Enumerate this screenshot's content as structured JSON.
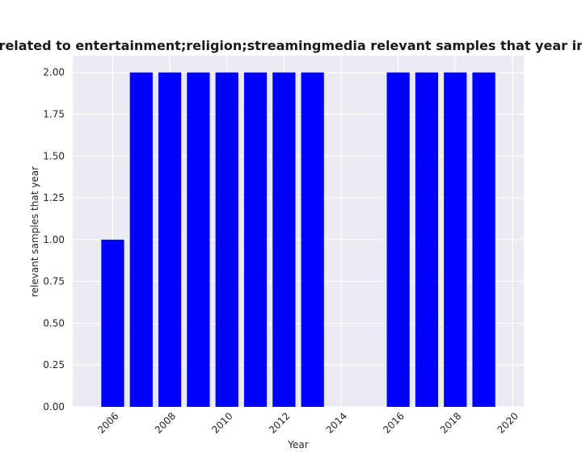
{
  "chart_data": {
    "type": "bar",
    "title": "ies are related to entertainment;religion;streamingmedia relevant samples that year in privacy",
    "xlabel": "Year",
    "ylabel": "relevant samples that year",
    "x": [
      2006,
      2007,
      2008,
      2009,
      2010,
      2011,
      2012,
      2013,
      2016,
      2017,
      2018,
      2019
    ],
    "values": [
      1,
      2,
      2,
      2,
      2,
      2,
      2,
      2,
      2,
      2,
      2,
      2
    ],
    "xlim": [
      2004.6,
      2020.4
    ],
    "ylim": [
      0,
      2.1
    ],
    "xticks": [
      "2006",
      "2008",
      "2010",
      "2012",
      "2014",
      "2016",
      "2018",
      "2020"
    ],
    "yticks": [
      "0.00",
      "0.25",
      "0.50",
      "0.75",
      "1.00",
      "1.25",
      "1.50",
      "1.75",
      "2.00"
    ],
    "bar_color": "#0000ff",
    "background_color": "#eaeaf2",
    "grid": true
  }
}
